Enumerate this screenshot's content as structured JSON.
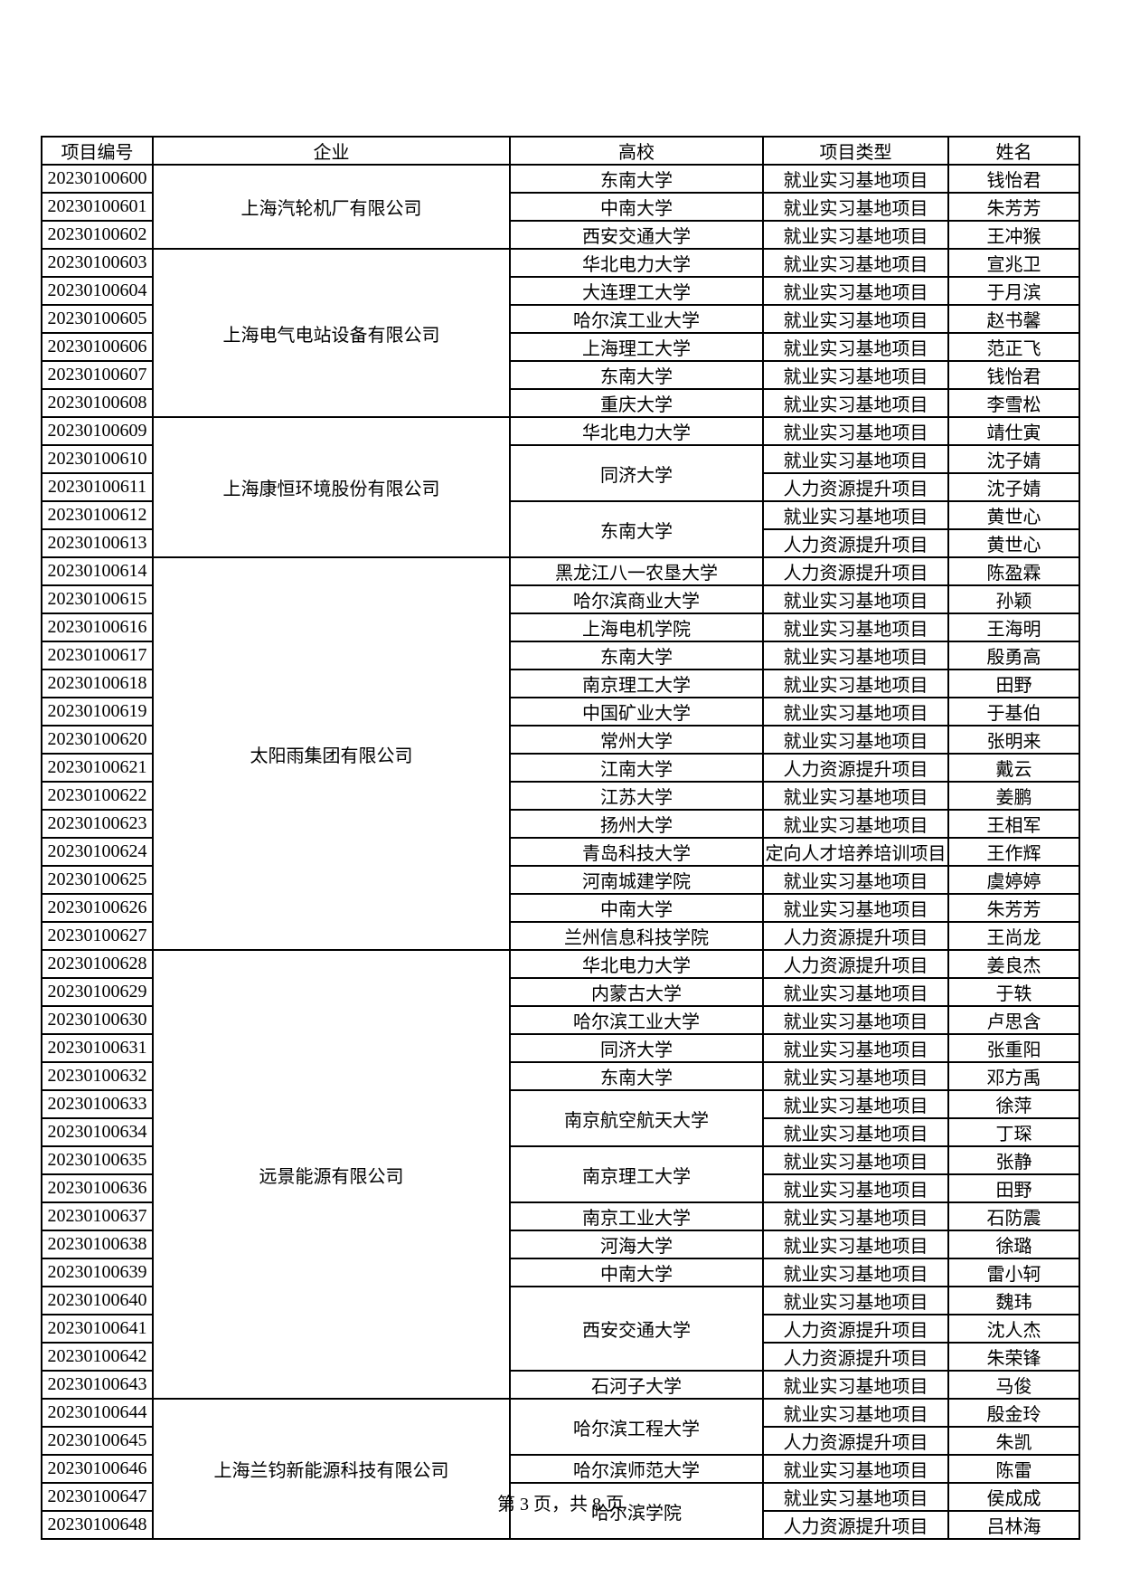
{
  "page": {
    "footer": "第 3 页，共 8 页"
  },
  "table": {
    "headers": [
      "项目编号",
      "企业",
      "高校",
      "项目类型",
      "姓名"
    ],
    "rows": [
      {
        "id": "20230100600",
        "company": {
          "label": "上海汽轮机厂有限公司",
          "span": 3
        },
        "university": {
          "label": "东南大学",
          "span": 1
        },
        "type": "就业实习基地项目",
        "name": "钱怡君"
      },
      {
        "id": "20230100601",
        "company": null,
        "university": {
          "label": "中南大学",
          "span": 1
        },
        "type": "就业实习基地项目",
        "name": "朱芳芳"
      },
      {
        "id": "20230100602",
        "company": null,
        "university": {
          "label": "西安交通大学",
          "span": 1
        },
        "type": "就业实习基地项目",
        "name": "王冲猴"
      },
      {
        "id": "20230100603",
        "company": {
          "label": "上海电气电站设备有限公司",
          "span": 6
        },
        "university": {
          "label": "华北电力大学",
          "span": 1
        },
        "type": "就业实习基地项目",
        "name": "宣兆卫"
      },
      {
        "id": "20230100604",
        "company": null,
        "university": {
          "label": "大连理工大学",
          "span": 1
        },
        "type": "就业实习基地项目",
        "name": "于月滨"
      },
      {
        "id": "20230100605",
        "company": null,
        "university": {
          "label": "哈尔滨工业大学",
          "span": 1
        },
        "type": "就业实习基地项目",
        "name": "赵书馨"
      },
      {
        "id": "20230100606",
        "company": null,
        "university": {
          "label": "上海理工大学",
          "span": 1
        },
        "type": "就业实习基地项目",
        "name": "范正飞"
      },
      {
        "id": "20230100607",
        "company": null,
        "university": {
          "label": "东南大学",
          "span": 1
        },
        "type": "就业实习基地项目",
        "name": "钱怡君"
      },
      {
        "id": "20230100608",
        "company": null,
        "university": {
          "label": "重庆大学",
          "span": 1
        },
        "type": "就业实习基地项目",
        "name": "李雪松"
      },
      {
        "id": "20230100609",
        "company": {
          "label": "上海康恒环境股份有限公司",
          "span": 5
        },
        "university": {
          "label": "华北电力大学",
          "span": 1
        },
        "type": "就业实习基地项目",
        "name": "靖仕寅"
      },
      {
        "id": "20230100610",
        "company": null,
        "university": {
          "label": "同济大学",
          "span": 2
        },
        "type": "就业实习基地项目",
        "name": "沈子婧"
      },
      {
        "id": "20230100611",
        "company": null,
        "university": null,
        "type": "人力资源提升项目",
        "name": "沈子婧"
      },
      {
        "id": "20230100612",
        "company": null,
        "university": {
          "label": "东南大学",
          "span": 2
        },
        "type": "就业实习基地项目",
        "name": "黄世心"
      },
      {
        "id": "20230100613",
        "company": null,
        "university": null,
        "type": "人力资源提升项目",
        "name": "黄世心"
      },
      {
        "id": "20230100614",
        "company": {
          "label": "太阳雨集团有限公司",
          "span": 14
        },
        "university": {
          "label": "黑龙江八一农垦大学",
          "span": 1
        },
        "type": "人力资源提升项目",
        "name": "陈盈霖"
      },
      {
        "id": "20230100615",
        "company": null,
        "university": {
          "label": "哈尔滨商业大学",
          "span": 1
        },
        "type": "就业实习基地项目",
        "name": "孙颖"
      },
      {
        "id": "20230100616",
        "company": null,
        "university": {
          "label": "上海电机学院",
          "span": 1
        },
        "type": "就业实习基地项目",
        "name": "王海明"
      },
      {
        "id": "20230100617",
        "company": null,
        "university": {
          "label": "东南大学",
          "span": 1
        },
        "type": "就业实习基地项目",
        "name": "殷勇高"
      },
      {
        "id": "20230100618",
        "company": null,
        "university": {
          "label": "南京理工大学",
          "span": 1
        },
        "type": "就业实习基地项目",
        "name": "田野"
      },
      {
        "id": "20230100619",
        "company": null,
        "university": {
          "label": "中国矿业大学",
          "span": 1
        },
        "type": "就业实习基地项目",
        "name": "于基伯"
      },
      {
        "id": "20230100620",
        "company": null,
        "university": {
          "label": "常州大学",
          "span": 1
        },
        "type": "就业实习基地项目",
        "name": "张明来"
      },
      {
        "id": "20230100621",
        "company": null,
        "university": {
          "label": "江南大学",
          "span": 1
        },
        "type": "人力资源提升项目",
        "name": "戴云"
      },
      {
        "id": "20230100622",
        "company": null,
        "university": {
          "label": "江苏大学",
          "span": 1
        },
        "type": "就业实习基地项目",
        "name": "姜鹏"
      },
      {
        "id": "20230100623",
        "company": null,
        "university": {
          "label": "扬州大学",
          "span": 1
        },
        "type": "就业实习基地项目",
        "name": "王相军"
      },
      {
        "id": "20230100624",
        "company": null,
        "university": {
          "label": "青岛科技大学",
          "span": 1
        },
        "type": "定向人才培养培训项目",
        "name": "王作辉"
      },
      {
        "id": "20230100625",
        "company": null,
        "university": {
          "label": "河南城建学院",
          "span": 1
        },
        "type": "就业实习基地项目",
        "name": "虞婷婷"
      },
      {
        "id": "20230100626",
        "company": null,
        "university": {
          "label": "中南大学",
          "span": 1
        },
        "type": "就业实习基地项目",
        "name": "朱芳芳"
      },
      {
        "id": "20230100627",
        "company": null,
        "university": {
          "label": "兰州信息科技学院",
          "span": 1
        },
        "type": "人力资源提升项目",
        "name": "王尚龙"
      },
      {
        "id": "20230100628",
        "company": {
          "label": "远景能源有限公司",
          "span": 16
        },
        "university": {
          "label": "华北电力大学",
          "span": 1
        },
        "type": "人力资源提升项目",
        "name": "姜良杰"
      },
      {
        "id": "20230100629",
        "company": null,
        "university": {
          "label": "内蒙古大学",
          "span": 1
        },
        "type": "就业实习基地项目",
        "name": "于轶"
      },
      {
        "id": "20230100630",
        "company": null,
        "university": {
          "label": "哈尔滨工业大学",
          "span": 1
        },
        "type": "就业实习基地项目",
        "name": "卢思含"
      },
      {
        "id": "20230100631",
        "company": null,
        "university": {
          "label": "同济大学",
          "span": 1
        },
        "type": "就业实习基地项目",
        "name": "张重阳"
      },
      {
        "id": "20230100632",
        "company": null,
        "university": {
          "label": "东南大学",
          "span": 1
        },
        "type": "就业实习基地项目",
        "name": "邓方禹"
      },
      {
        "id": "20230100633",
        "company": null,
        "university": {
          "label": "南京航空航天大学",
          "span": 2
        },
        "type": "就业实习基地项目",
        "name": "徐萍"
      },
      {
        "id": "20230100634",
        "company": null,
        "university": null,
        "type": "就业实习基地项目",
        "name": "丁琛"
      },
      {
        "id": "20230100635",
        "company": null,
        "university": {
          "label": "南京理工大学",
          "span": 2
        },
        "type": "就业实习基地项目",
        "name": "张静"
      },
      {
        "id": "20230100636",
        "company": null,
        "university": null,
        "type": "就业实习基地项目",
        "name": "田野"
      },
      {
        "id": "20230100637",
        "company": null,
        "university": {
          "label": "南京工业大学",
          "span": 1
        },
        "type": "就业实习基地项目",
        "name": "石防震"
      },
      {
        "id": "20230100638",
        "company": null,
        "university": {
          "label": "河海大学",
          "span": 1
        },
        "type": "就业实习基地项目",
        "name": "徐璐"
      },
      {
        "id": "20230100639",
        "company": null,
        "university": {
          "label": "中南大学",
          "span": 1
        },
        "type": "就业实习基地项目",
        "name": "雷小轲"
      },
      {
        "id": "20230100640",
        "company": null,
        "university": {
          "label": "西安交通大学",
          "span": 3
        },
        "type": "就业实习基地项目",
        "name": "魏玮"
      },
      {
        "id": "20230100641",
        "company": null,
        "university": null,
        "type": "人力资源提升项目",
        "name": "沈人杰"
      },
      {
        "id": "20230100642",
        "company": null,
        "university": null,
        "type": "人力资源提升项目",
        "name": "朱荣锋"
      },
      {
        "id": "20230100643",
        "company": null,
        "university": {
          "label": "石河子大学",
          "span": 1
        },
        "type": "就业实习基地项目",
        "name": "马俊"
      },
      {
        "id": "20230100644",
        "company": {
          "label": "上海兰钧新能源科技有限公司",
          "span": 5
        },
        "university": {
          "label": "哈尔滨工程大学",
          "span": 2
        },
        "type": "就业实习基地项目",
        "name": "殷金玲"
      },
      {
        "id": "20230100645",
        "company": null,
        "university": null,
        "type": "人力资源提升项目",
        "name": "朱凯"
      },
      {
        "id": "20230100646",
        "company": null,
        "university": {
          "label": "哈尔滨师范大学",
          "span": 1
        },
        "type": "就业实习基地项目",
        "name": "陈雷"
      },
      {
        "id": "20230100647",
        "company": null,
        "university": {
          "label": "哈尔滨学院",
          "span": 2
        },
        "type": "就业实习基地项目",
        "name": "侯成成"
      },
      {
        "id": "20230100648",
        "company": null,
        "university": null,
        "type": "人力资源提升项目",
        "name": "吕林海"
      }
    ]
  }
}
